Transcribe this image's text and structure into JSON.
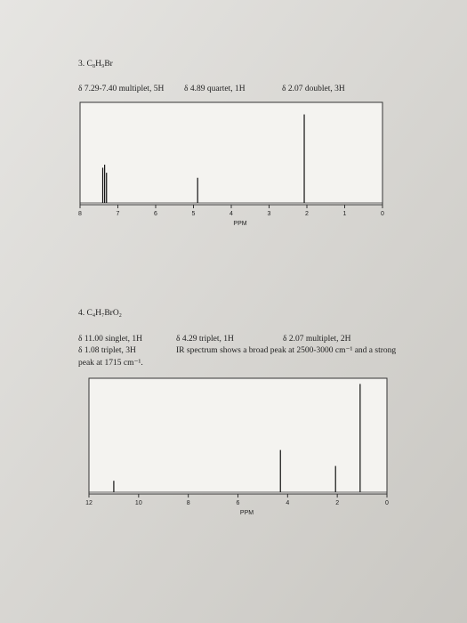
{
  "problems": [
    {
      "title": "3. C₈H₉Br",
      "notes": [
        "δ 7.29-7.40 multiplet, 5H",
        "δ 4.89 quartet, 1H",
        "δ 2.07 doublet, 3H"
      ],
      "spectrum": {
        "xlim": [
          8,
          0
        ],
        "xticks": [
          8,
          7,
          6,
          5,
          4,
          3,
          2,
          1,
          0
        ],
        "xlabel": "PPM",
        "peaks": [
          {
            "ppm": 7.4,
            "height": 0.35
          },
          {
            "ppm": 7.35,
            "height": 0.38
          },
          {
            "ppm": 7.3,
            "height": 0.3
          },
          {
            "ppm": 4.89,
            "height": 0.25
          },
          {
            "ppm": 2.07,
            "height": 0.88
          }
        ]
      }
    },
    {
      "title": "4. C₄H₇BrO₂",
      "notes": [
        "δ 11.00 singlet, 1H",
        "δ 4.29 triplet, 1H",
        "δ 2.07 multiplet, 2H",
        "δ 1.08 triplet, 3H",
        "IR spectrum shows a broad peak at 2500-3000 cm⁻¹ and a strong",
        "peak at 1715 cm⁻¹."
      ],
      "spectrum": {
        "xlim": [
          12,
          0
        ],
        "xticks": [
          12,
          10,
          8,
          6,
          4,
          2,
          0
        ],
        "xlabel": "PPM",
        "peaks": [
          {
            "ppm": 11.0,
            "height": 0.1
          },
          {
            "ppm": 4.29,
            "height": 0.37
          },
          {
            "ppm": 2.07,
            "height": 0.23
          },
          {
            "ppm": 1.08,
            "height": 0.95
          }
        ]
      }
    }
  ]
}
